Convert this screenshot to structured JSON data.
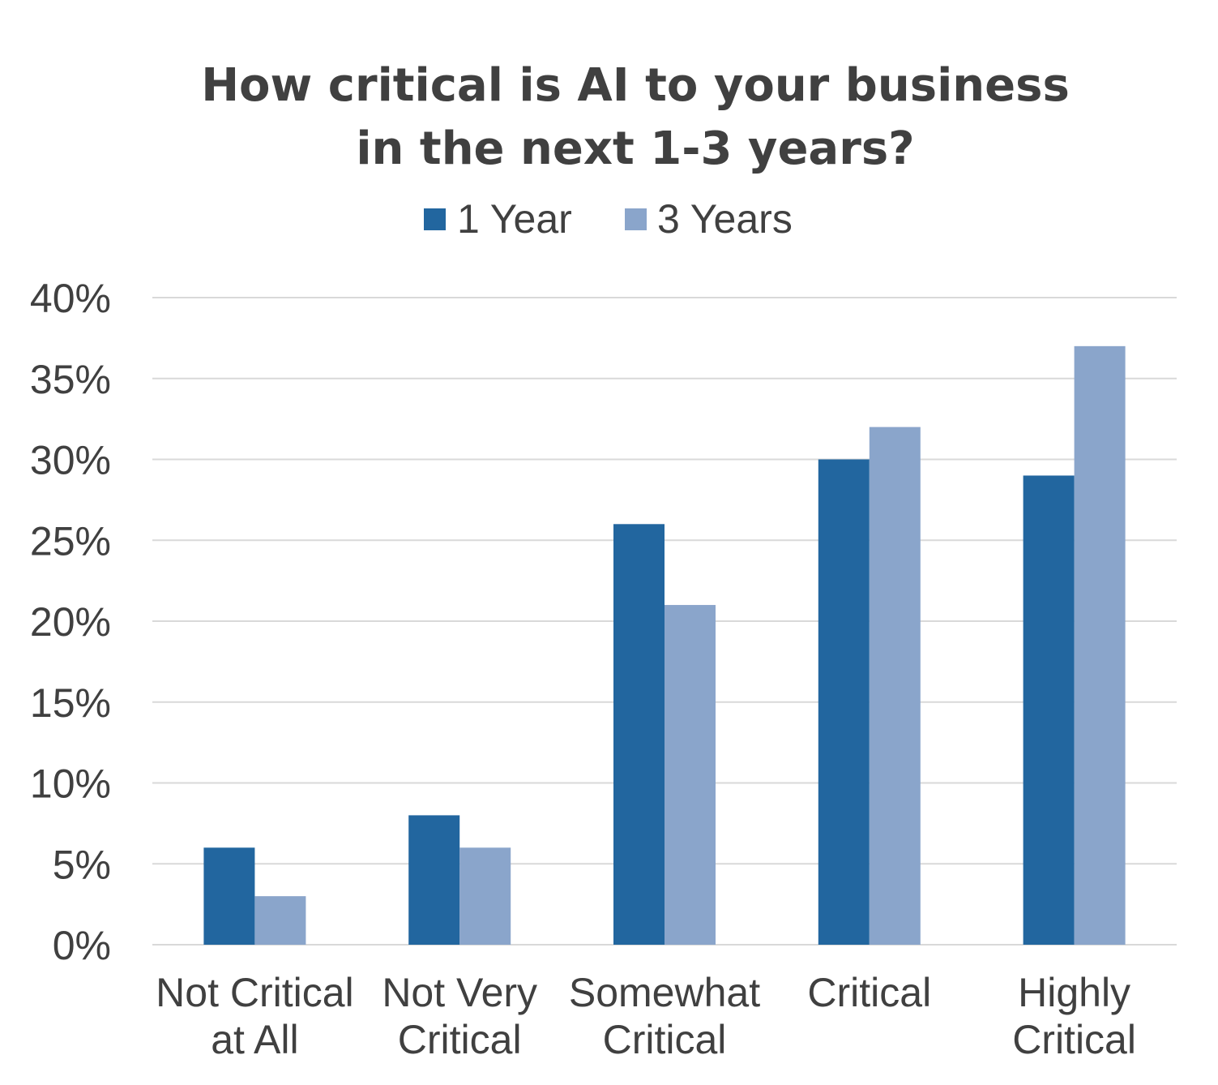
{
  "chart_data": {
    "type": "bar",
    "title_lines": [
      "How critical is AI to your business",
      "in the next 1-3 years?"
    ],
    "categories": [
      [
        "Not Critical",
        "at All"
      ],
      [
        "Not Very",
        "Critical"
      ],
      [
        "Somewhat",
        "Critical"
      ],
      [
        "Critical"
      ],
      [
        "Highly",
        "Critical"
      ]
    ],
    "series": [
      {
        "name": "1 Year",
        "color": "#22669f",
        "values": [
          6,
          8,
          26,
          30,
          29
        ]
      },
      {
        "name": "3 Years",
        "color": "#8aa5cb",
        "values": [
          3,
          6,
          21,
          32,
          37
        ]
      }
    ],
    "ylim": [
      0,
      40
    ],
    "ytick_step": 5,
    "ytick_labels": [
      "0%",
      "5%",
      "10%",
      "15%",
      "20%",
      "25%",
      "30%",
      "35%",
      "40%"
    ],
    "grid": true,
    "legend_position": "top-center",
    "xlabel": "",
    "ylabel": ""
  }
}
